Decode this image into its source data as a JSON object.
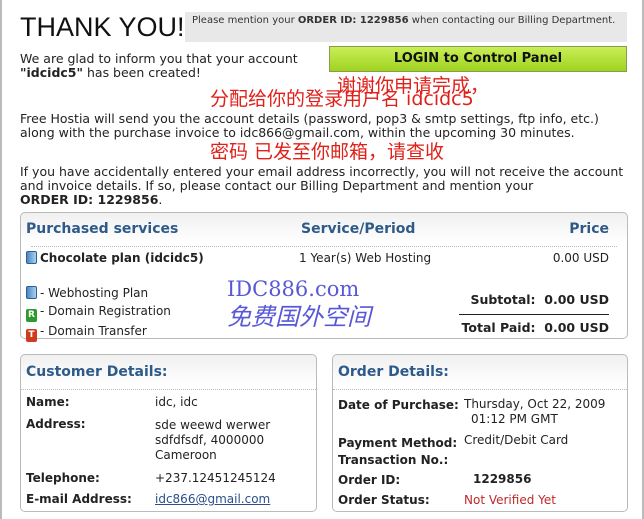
{
  "header": {
    "title": "THANK YOU!",
    "notice_pre": "Please mention your ",
    "notice_bold": "ORDER ID: 1229856",
    "notice_post": " when contacting our Billing Department."
  },
  "intro": {
    "line1": "We are glad to inform you that your account",
    "account": "\"idcidc5\"",
    "line2": " has been created!"
  },
  "login_button": "LOGIN to Control Panel",
  "info": "Free Hostia will send you the account details (password, pop3 & smtp settings, ftp info, etc.) along with the purchase invoice to idc866@gmail.com, within the upcoming 30 minutes.",
  "warning": "If you have accidentally entered your email address incorrectly, you will not receive the account and invoice details. If so, please contact our Billing Department and mention your",
  "warning_order": "ORDER ID: 1229856",
  "overlay": {
    "line1": "谢谢你申请完成，",
    "line2": "分配给你的登录用户名  idcidc5",
    "line3": "密码 已发至你邮箱，请查收"
  },
  "services": {
    "headers": [
      "Purchased services",
      "Service/Period",
      "Price"
    ],
    "row": {
      "name": "Chocolate plan (idcidc5)",
      "period": "1 Year(s) Web Hosting",
      "price": "0.00 USD"
    },
    "legend": [
      "- Webhosting Plan",
      "- Domain Registration",
      "- Domain Transfer"
    ],
    "legend_icons": [
      "server-icon",
      "R",
      "T"
    ],
    "subtotal_label": "Subtotal:",
    "subtotal": "0.00 USD",
    "total_label": "Total Paid:",
    "total": "0.00 USD"
  },
  "customer": {
    "title": "Customer Details:",
    "name_label": "Name:",
    "name": "idc, idc",
    "address_label": "Address:",
    "address": [
      "sde weewd werwer",
      "sdfdfsdf, 4000000",
      "Cameroon"
    ],
    "phone_label": "Telephone:",
    "phone": "+237.12451245124",
    "email_label": "E-mail Address:",
    "email": "idc866@gmail.com"
  },
  "order": {
    "title": "Order Details:",
    "date_label": "Date of Purchase:",
    "date": [
      "Thursday, Oct 22, 2009",
      "01:12 PM GMT"
    ],
    "payment_label": "Payment Method:",
    "payment": "Credit/Debit Card",
    "transaction_label": "Transaction No.:",
    "id_label": "Order ID:",
    "id": "1229856",
    "status_label": "Order Status:",
    "status": "Not Verified Yet",
    "status_color": "#c0282a"
  },
  "watermark": {
    "line1": "IDC886.com",
    "line2": "免费国外空间"
  }
}
